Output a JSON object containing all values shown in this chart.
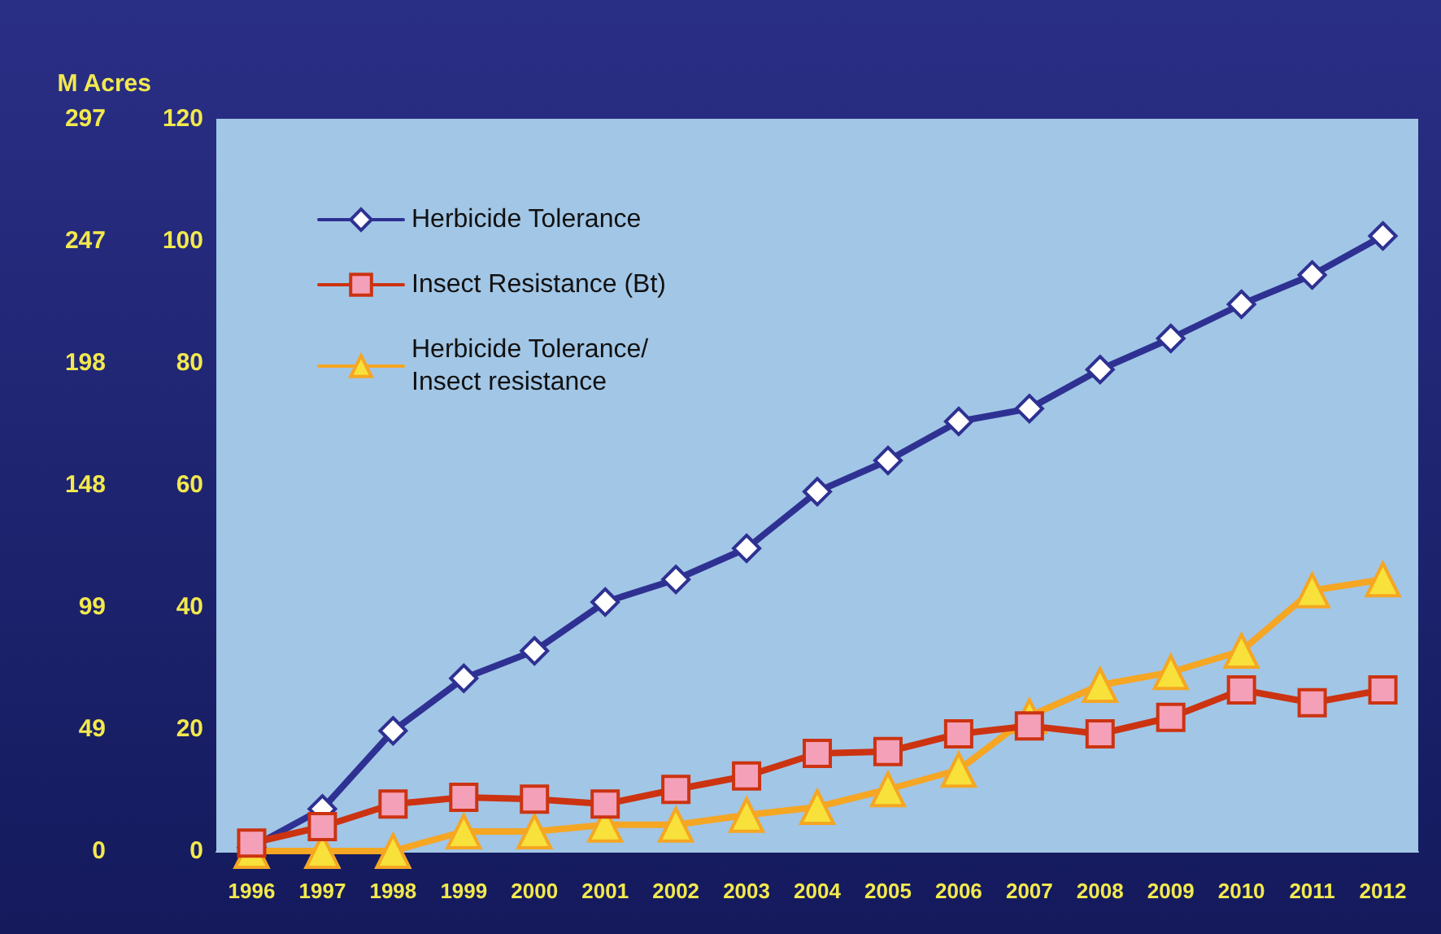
{
  "chart_data": {
    "type": "line",
    "y2label": "M Acres",
    "categories": [
      "1996",
      "1997",
      "1998",
      "1999",
      "2000",
      "2001",
      "2002",
      "2003",
      "2004",
      "2005",
      "2006",
      "2007",
      "2008",
      "2009",
      "2010",
      "2011",
      "2012"
    ],
    "series": [
      {
        "name": "Herbicide Tolerance",
        "color": "#2e3192",
        "marker": "diamond",
        "values": [
          0.6,
          6.9,
          19.7,
          28.3,
          32.8,
          40.8,
          44.5,
          49.6,
          58.9,
          64,
          70.4,
          72.5,
          78.9,
          84,
          89.6,
          94.4,
          100.8
        ]
      },
      {
        "name": "Insect Resistance (Bt)",
        "color": "#cc3311",
        "marker": "square",
        "values": [
          1.3,
          4,
          7.7,
          8.8,
          8.5,
          7.7,
          10.1,
          12.3,
          16,
          16.3,
          19.2,
          20.5,
          19.2,
          21.9,
          26.4,
          24.3,
          26.4
        ]
      },
      {
        "name": "Herbicide Tolerance/ Insect resistance",
        "color": "#f5a623",
        "marker": "triangle",
        "values": [
          0,
          0,
          0,
          3.2,
          3.2,
          4.3,
          4.3,
          5.9,
          7.2,
          10.1,
          13.3,
          22.1,
          27.2,
          29.3,
          32.8,
          42.7,
          44.5
        ]
      }
    ],
    "ylim": [
      0,
      120
    ],
    "yticks": [
      0,
      20,
      40,
      60,
      80,
      100,
      120
    ],
    "y2lim": [
      0,
      296.5
    ],
    "y2ticks": [
      {
        "value": 0,
        "label": "0"
      },
      {
        "value": 49.4,
        "label": "49"
      },
      {
        "value": 98.8,
        "label": "99"
      },
      {
        "value": 148.3,
        "label": "148"
      },
      {
        "value": 197.7,
        "label": "198"
      },
      {
        "value": 247.1,
        "label": "247"
      },
      {
        "value": 296.5,
        "label": "297"
      }
    ],
    "grid": false,
    "legend": "top left",
    "line_style": "solid"
  }
}
